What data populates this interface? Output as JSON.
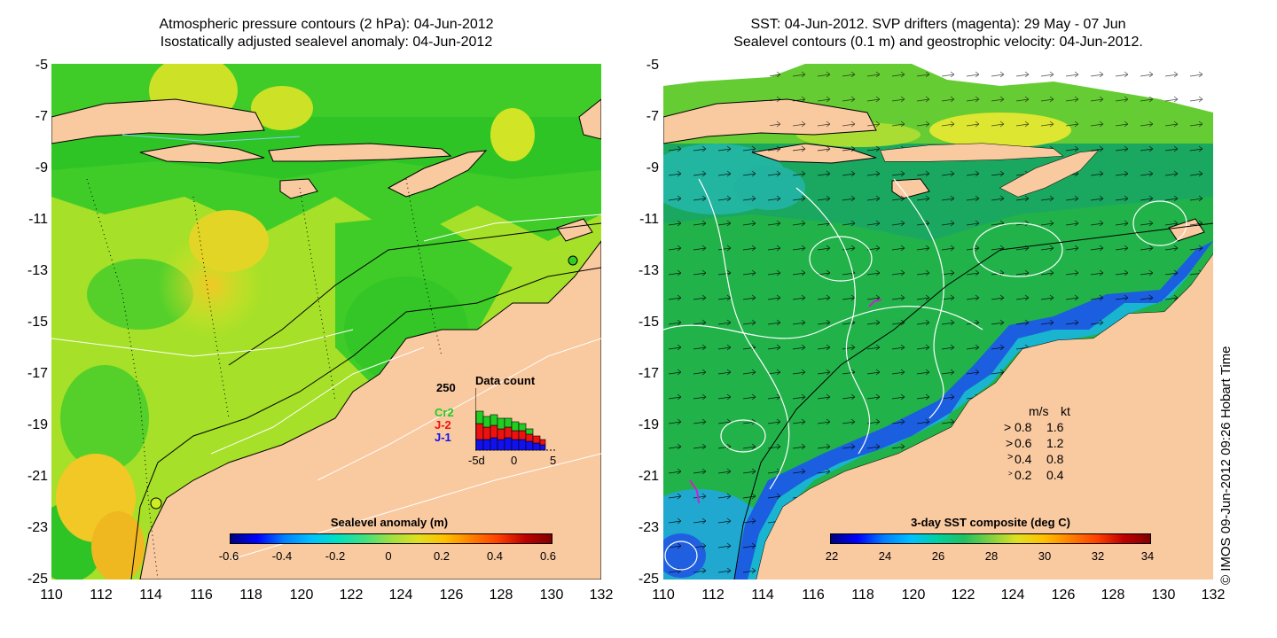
{
  "left": {
    "title_line1": "Atmospheric pressure contours (2 hPa): 04-Jun-2012",
    "title_line2": "Isostatically adjusted sealevel anomaly: 04-Jun-2012",
    "colorbar": {
      "title": "Sealevel anomaly (m)",
      "labels": [
        "-0.6",
        "-0.4",
        "-0.2",
        "0",
        "0.2",
        "0.4",
        "0.6"
      ]
    },
    "data_count": {
      "title": "Data count",
      "ymax": "250",
      "series": [
        "Cr2",
        "J-2",
        "J-1"
      ],
      "series_colors": [
        "#22cc22",
        "#ee1111",
        "#1111ee"
      ],
      "x_labels": [
        "-5d",
        "0",
        "5"
      ]
    }
  },
  "right": {
    "title_line1": "SST: 04-Jun-2012. SVP drifters (magenta): 29 May - 07 Jun",
    "title_line2": "Sealevel contours (0.1 m) and geostrophic velocity: 04-Jun-2012.",
    "colorbar": {
      "title": "3-day SST composite (deg C)",
      "labels": [
        "22",
        "24",
        "26",
        "28",
        "30",
        "32",
        "34"
      ]
    },
    "velocity_legend": {
      "header_ms": "m/s",
      "header_kt": "kt",
      "rows": [
        {
          "ms": "0.8",
          "kt": "1.6"
        },
        {
          "ms": "0.6",
          "kt": "1.2"
        },
        {
          "ms": "0.4",
          "kt": "0.8"
        },
        {
          "ms": "0.2",
          "kt": "0.4"
        }
      ]
    }
  },
  "y_axis_labels": [
    "-5",
    "-7",
    "-9",
    "-11",
    "-13",
    "-15",
    "-17",
    "-19",
    "-21",
    "-23",
    "-25"
  ],
  "x_axis_labels": [
    "110",
    "112",
    "114",
    "116",
    "118",
    "120",
    "122",
    "124",
    "126",
    "128",
    "130",
    "132"
  ],
  "credit": "© IMOS 09-Jun-2012 09:26 Hobart Time",
  "colors": {
    "land": "#f9c9a0",
    "sla_green": "#33cc22",
    "sla_yellow": "#ccee22",
    "sst_green": "#22bb44",
    "sst_cyan": "#22aacc"
  }
}
